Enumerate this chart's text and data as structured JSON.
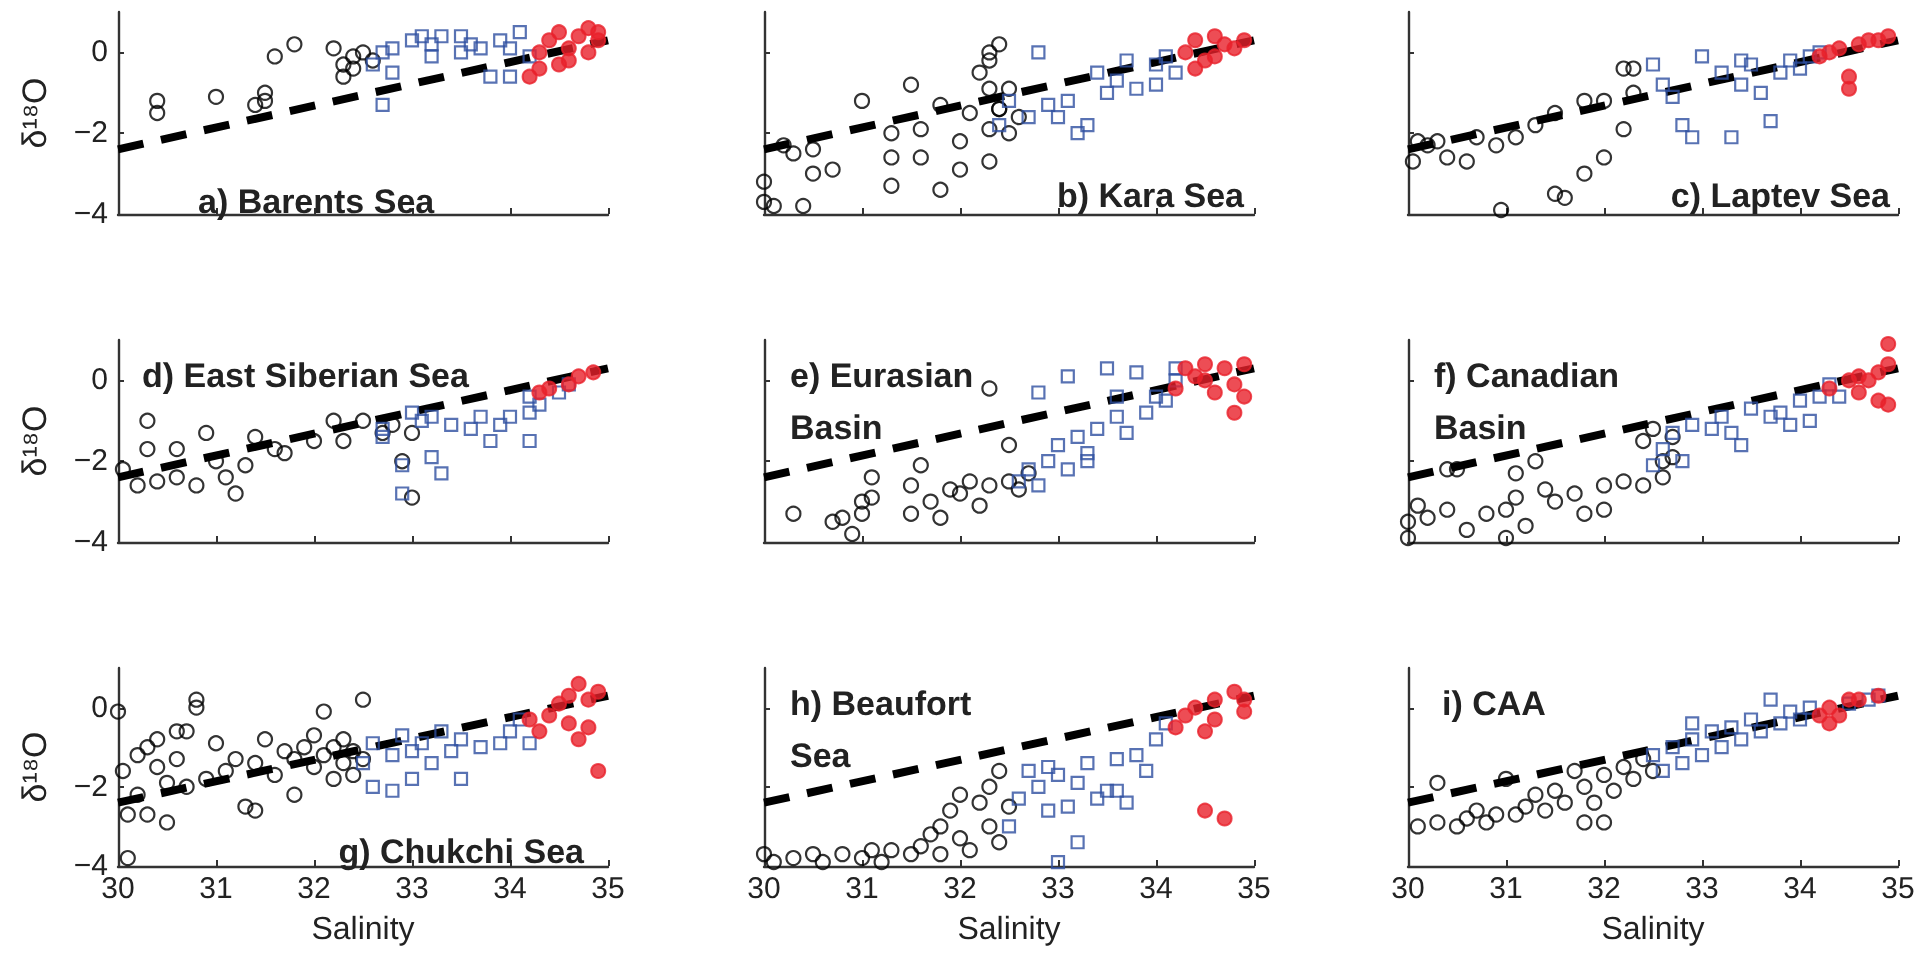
{
  "chart_data": [
    {
      "type": "scatter",
      "title": "a) Barents Sea",
      "ylabel": "δ¹⁸O",
      "xlim": [
        30,
        35
      ],
      "ylim": [
        -4,
        1
      ],
      "xticks": [
        30,
        31,
        32,
        33,
        34,
        35
      ],
      "yticks": [
        -4,
        -2,
        0
      ],
      "tick_labels": "y",
      "series": [
        {
          "color": "#000000",
          "marker": "circle",
          "x": [
            30.4,
            30.4,
            31.0,
            31.4,
            31.5,
            31.5,
            31.6,
            31.8,
            32.2,
            32.3,
            32.3,
            32.4,
            32.5,
            32.6,
            32.4
          ],
          "values": [
            -1.2,
            -1.5,
            -1.1,
            -1.3,
            -1.0,
            -1.2,
            -0.1,
            0.2,
            0.1,
            -0.3,
            -0.6,
            -0.1,
            0.0,
            -0.2,
            -0.4
          ]
        },
        {
          "color": "#2e4fa0",
          "marker": "square",
          "x": [
            32.6,
            32.7,
            32.8,
            32.8,
            32.7,
            33.0,
            33.1,
            33.2,
            33.3,
            33.5,
            33.5,
            33.6,
            33.8,
            33.9,
            34.0,
            34.0,
            34.2,
            33.7,
            33.2,
            34.1
          ],
          "values": [
            -0.3,
            0.0,
            0.1,
            -0.5,
            -1.3,
            0.3,
            0.4,
            0.2,
            0.4,
            0.4,
            0.0,
            0.2,
            -0.6,
            0.3,
            0.1,
            -0.6,
            -0.1,
            0.1,
            -0.1,
            0.5
          ]
        },
        {
          "color": "#e8202a",
          "marker": "circle",
          "x": [
            34.2,
            34.3,
            34.4,
            34.5,
            34.5,
            34.6,
            34.7,
            34.8,
            34.8,
            34.9,
            34.9,
            34.3,
            34.6
          ],
          "values": [
            -0.6,
            0.0,
            0.3,
            0.5,
            -0.3,
            0.1,
            0.4,
            0.6,
            0.0,
            0.3,
            0.5,
            -0.4,
            -0.2
          ]
        },
        {
          "type": "line",
          "color": "#000000",
          "marker": "none",
          "line_style": "dashed",
          "x": [
            30,
            35
          ],
          "values": [
            -2.4,
            0.3
          ]
        }
      ]
    },
    {
      "type": "scatter",
      "title": "b) Kara Sea",
      "xlim": [
        30,
        35
      ],
      "ylim": [
        -4,
        1
      ],
      "xticks": [
        30,
        31,
        32,
        33,
        34,
        35
      ],
      "yticks": [
        -4,
        -2,
        0
      ],
      "tick_labels": false,
      "series": [
        {
          "color": "#000000",
          "marker": "circle",
          "x": [
            30.0,
            30.0,
            30.1,
            30.2,
            30.3,
            30.4,
            30.5,
            30.5,
            30.7,
            31.0,
            31.3,
            31.3,
            31.3,
            31.5,
            31.6,
            31.6,
            31.8,
            31.8,
            32.0,
            32.0,
            32.3,
            32.3,
            32.4,
            32.5,
            32.6,
            32.5,
            32.2,
            32.3,
            32.4,
            32.3,
            32.1,
            32.3,
            32.4
          ],
          "values": [
            -3.2,
            -3.7,
            -3.8,
            -2.3,
            -2.5,
            -3.8,
            -3.0,
            -2.4,
            -2.9,
            -1.2,
            -2.0,
            -3.3,
            -2.6,
            -0.8,
            -1.9,
            -2.6,
            -1.3,
            -3.4,
            -2.2,
            -2.9,
            -0.9,
            -2.7,
            -1.4,
            -0.9,
            -1.6,
            -2.0,
            -0.5,
            -0.2,
            0.2,
            0.0,
            -1.5,
            -1.9,
            -1.4
          ]
        },
        {
          "color": "#2e4fa0",
          "marker": "square",
          "x": [
            32.8,
            32.4,
            32.7,
            32.9,
            33.0,
            33.1,
            33.3,
            33.5,
            33.6,
            33.8,
            34.0,
            34.0,
            34.1,
            33.4,
            33.7,
            34.2,
            33.2,
            32.5
          ],
          "values": [
            0.0,
            -1.8,
            -1.6,
            -1.3,
            -1.6,
            -1.2,
            -1.8,
            -1.0,
            -0.7,
            -0.9,
            -0.3,
            -0.8,
            -0.1,
            -0.5,
            -0.2,
            -0.5,
            -2.0,
            -1.2
          ]
        },
        {
          "color": "#e8202a",
          "marker": "circle",
          "x": [
            34.3,
            34.4,
            34.5,
            34.6,
            34.7,
            34.8,
            34.9,
            34.6,
            34.4
          ],
          "values": [
            0.0,
            0.3,
            -0.2,
            0.4,
            0.2,
            0.1,
            0.3,
            -0.1,
            -0.4
          ]
        },
        {
          "type": "line",
          "color": "#000000",
          "marker": "none",
          "line_style": "dashed",
          "x": [
            30,
            35
          ],
          "values": [
            -2.4,
            0.3
          ]
        }
      ]
    },
    {
      "type": "scatter",
      "title": "c) Laptev Sea",
      "xlim": [
        30,
        35
      ],
      "ylim": [
        -4,
        1
      ],
      "xticks": [
        30,
        31,
        32,
        33,
        34,
        35
      ],
      "yticks": [
        -4,
        -2,
        0
      ],
      "tick_labels": false,
      "series": [
        {
          "color": "#000000",
          "marker": "circle",
          "x": [
            30.05,
            30.1,
            30.2,
            30.3,
            30.4,
            30.6,
            30.7,
            30.9,
            30.95,
            31.1,
            31.3,
            31.5,
            31.6,
            31.5,
            31.8,
            31.8,
            32.0,
            32.0,
            32.2,
            32.2,
            32.3,
            32.3
          ],
          "values": [
            -2.7,
            -2.2,
            -2.3,
            -2.2,
            -2.6,
            -2.7,
            -2.1,
            -2.3,
            -3.9,
            -2.1,
            -1.8,
            -3.5,
            -3.6,
            -1.5,
            -3.0,
            -1.2,
            -2.6,
            -1.2,
            -1.9,
            -0.4,
            -0.4,
            -1.0
          ]
        },
        {
          "color": "#2e4fa0",
          "marker": "square",
          "x": [
            32.5,
            32.6,
            32.7,
            32.8,
            32.9,
            33.0,
            33.2,
            33.3,
            33.4,
            33.5,
            33.6,
            33.7,
            33.8,
            33.9,
            34.0,
            34.1,
            34.2,
            33.4
          ],
          "values": [
            -0.3,
            -0.8,
            -1.1,
            -1.8,
            -2.1,
            -0.1,
            -0.5,
            -2.1,
            -0.8,
            -0.3,
            -1.0,
            -1.7,
            -0.5,
            -0.2,
            -0.4,
            -0.1,
            0.0,
            -0.2
          ]
        },
        {
          "color": "#e8202a",
          "marker": "circle",
          "x": [
            34.2,
            34.3,
            34.4,
            34.5,
            34.5,
            34.6,
            34.7,
            34.8,
            34.9
          ],
          "values": [
            -0.1,
            0.0,
            0.1,
            -0.6,
            -0.9,
            0.2,
            0.3,
            0.3,
            0.4
          ]
        },
        {
          "type": "line",
          "color": "#000000",
          "marker": "none",
          "line_style": "dashed",
          "x": [
            30,
            35
          ],
          "values": [
            -2.4,
            0.3
          ]
        }
      ]
    },
    {
      "type": "scatter",
      "title": "d) East Siberian Sea",
      "ylabel": "δ¹⁸O",
      "xlim": [
        30,
        35
      ],
      "ylim": [
        -4,
        1
      ],
      "xticks": [
        30,
        31,
        32,
        33,
        34,
        35
      ],
      "yticks": [
        -4,
        -2,
        0
      ],
      "tick_labels": "y",
      "series": [
        {
          "color": "#000000",
          "marker": "circle",
          "x": [
            30.05,
            30.2,
            30.3,
            30.3,
            30.4,
            30.6,
            30.6,
            30.8,
            30.9,
            31.0,
            31.1,
            31.2,
            31.3,
            31.4,
            31.6,
            31.7,
            32.0,
            32.2,
            32.3,
            32.5,
            32.7,
            32.8,
            32.9,
            33.0,
            33.0
          ],
          "values": [
            -2.2,
            -2.6,
            -1.7,
            -1.0,
            -2.5,
            -2.4,
            -1.7,
            -2.6,
            -1.3,
            -2.0,
            -2.4,
            -2.8,
            -2.1,
            -1.4,
            -1.7,
            -1.8,
            -1.5,
            -1.0,
            -1.5,
            -1.0,
            -1.3,
            -1.1,
            -2.0,
            -2.9,
            -1.3
          ]
        },
        {
          "color": "#2e4fa0",
          "marker": "square",
          "x": [
            32.7,
            32.7,
            32.9,
            32.9,
            33.0,
            33.1,
            33.2,
            33.3,
            33.2,
            33.4,
            33.6,
            33.7,
            33.8,
            33.9,
            34.0,
            34.2,
            34.2,
            34.2,
            34.3,
            34.5,
            34.6
          ],
          "values": [
            -1.2,
            -1.4,
            -2.1,
            -2.8,
            -0.8,
            -1.0,
            -1.9,
            -2.3,
            -0.9,
            -1.1,
            -1.2,
            -0.9,
            -1.5,
            -1.1,
            -0.9,
            -0.8,
            -1.5,
            -0.4,
            -0.6,
            -0.3,
            -0.1
          ]
        },
        {
          "color": "#e8202a",
          "marker": "circle",
          "x": [
            34.3,
            34.4,
            34.6,
            34.7,
            34.85
          ],
          "values": [
            -0.3,
            -0.2,
            -0.1,
            0.1,
            0.2
          ]
        },
        {
          "type": "line",
          "color": "#000000",
          "marker": "none",
          "line_style": "dashed",
          "x": [
            30,
            35
          ],
          "values": [
            -2.4,
            0.3
          ]
        }
      ]
    },
    {
      "type": "scatter",
      "title": "e) Eurasian\nBasin",
      "xlim": [
        30,
        35
      ],
      "ylim": [
        -4,
        1
      ],
      "xticks": [
        30,
        31,
        32,
        33,
        34,
        35
      ],
      "yticks": [
        -4,
        -2,
        0
      ],
      "tick_labels": false,
      "series": [
        {
          "color": "#000000",
          "marker": "circle",
          "x": [
            30.3,
            30.7,
            30.8,
            30.9,
            31.0,
            31.0,
            31.1,
            31.1,
            31.5,
            31.5,
            31.6,
            31.7,
            31.8,
            31.9,
            32.0,
            32.1,
            32.2,
            32.3,
            32.5,
            32.6,
            32.7,
            32.3,
            32.5
          ],
          "values": [
            -3.3,
            -3.5,
            -3.4,
            -3.8,
            -3.0,
            -3.3,
            -2.4,
            -2.9,
            -2.6,
            -3.3,
            -2.1,
            -3.0,
            -3.4,
            -2.7,
            -2.8,
            -2.5,
            -3.1,
            -2.6,
            -2.5,
            -2.7,
            -2.3,
            -0.2,
            -1.6
          ]
        },
        {
          "color": "#2e4fa0",
          "marker": "square",
          "x": [
            32.6,
            32.7,
            32.8,
            32.8,
            32.9,
            33.0,
            33.1,
            33.1,
            33.2,
            33.3,
            33.4,
            33.5,
            33.6,
            33.6,
            33.7,
            33.8,
            33.9,
            34.0,
            34.1,
            34.2,
            34.2,
            33.3
          ],
          "values": [
            -2.5,
            -2.2,
            -2.6,
            -0.3,
            -2.0,
            -1.6,
            0.1,
            -2.2,
            -1.4,
            -1.8,
            -1.2,
            0.3,
            -0.4,
            -0.9,
            -1.3,
            0.2,
            -0.8,
            -0.4,
            -0.5,
            0.0,
            0.3,
            -2.0
          ]
        },
        {
          "color": "#e8202a",
          "marker": "circle",
          "x": [
            34.2,
            34.3,
            34.4,
            34.5,
            34.6,
            34.7,
            34.8,
            34.8,
            34.9,
            34.9,
            34.5
          ],
          "values": [
            -0.2,
            0.3,
            0.1,
            0.4,
            -0.3,
            0.3,
            -0.1,
            -0.8,
            0.4,
            -0.4,
            0.0
          ]
        },
        {
          "type": "line",
          "color": "#000000",
          "marker": "none",
          "line_style": "dashed",
          "x": [
            30,
            35
          ],
          "values": [
            -2.4,
            0.3
          ]
        }
      ]
    },
    {
      "type": "scatter",
      "title": "f) Canadian\nBasin",
      "xlim": [
        30,
        35
      ],
      "ylim": [
        -4,
        1
      ],
      "xticks": [
        30,
        31,
        32,
        33,
        34,
        35
      ],
      "yticks": [
        -4,
        -2,
        0
      ],
      "tick_labels": false,
      "series": [
        {
          "color": "#000000",
          "marker": "circle",
          "x": [
            30.0,
            30.0,
            30.1,
            30.2,
            30.4,
            30.4,
            30.5,
            30.6,
            30.8,
            31.0,
            31.0,
            31.1,
            31.1,
            31.2,
            31.3,
            31.4,
            31.5,
            31.7,
            31.8,
            32.0,
            32.0,
            32.2,
            32.4,
            32.5,
            32.6,
            32.7,
            32.6,
            32.7,
            32.4
          ],
          "values": [
            -3.5,
            -3.9,
            -3.1,
            -3.4,
            -3.2,
            -2.2,
            -2.2,
            -3.7,
            -3.3,
            -3.2,
            -3.9,
            -2.3,
            -2.9,
            -3.6,
            -2.0,
            -2.7,
            -3.0,
            -2.8,
            -3.3,
            -2.6,
            -3.2,
            -2.5,
            -1.5,
            -1.2,
            -2.4,
            -1.4,
            -2.0,
            -1.9,
            -2.6
          ]
        },
        {
          "color": "#2e4fa0",
          "marker": "square",
          "x": [
            32.5,
            32.6,
            32.7,
            32.8,
            32.9,
            33.1,
            33.2,
            33.3,
            33.4,
            33.5,
            33.7,
            33.8,
            33.9,
            34.0,
            34.1,
            34.2,
            34.3,
            34.4
          ],
          "values": [
            -2.1,
            -1.7,
            -1.3,
            -2.0,
            -1.1,
            -1.2,
            -0.9,
            -1.3,
            -1.6,
            -0.7,
            -0.9,
            -0.8,
            -1.1,
            -0.5,
            -1.0,
            -0.4,
            -0.1,
            -0.4
          ]
        },
        {
          "color": "#e8202a",
          "marker": "circle",
          "x": [
            34.3,
            34.5,
            34.6,
            34.7,
            34.8,
            34.8,
            34.9,
            34.9,
            34.9,
            34.6
          ],
          "values": [
            -0.2,
            0.0,
            -0.3,
            0.0,
            0.2,
            -0.5,
            0.4,
            0.9,
            -0.6,
            0.1
          ]
        },
        {
          "type": "line",
          "color": "#000000",
          "marker": "none",
          "line_style": "dashed",
          "x": [
            30,
            35
          ],
          "values": [
            -2.4,
            0.3
          ]
        }
      ]
    },
    {
      "type": "scatter",
      "title": "g) Chukchi Sea",
      "xlabel": "Salinity",
      "ylabel": "δ¹⁸O",
      "xlim": [
        30,
        35
      ],
      "ylim": [
        -4,
        1
      ],
      "xticks": [
        30,
        31,
        32,
        33,
        34,
        35
      ],
      "yticks": [
        -4,
        -2,
        0
      ],
      "series": [
        {
          "color": "#000000",
          "marker": "circle",
          "x": [
            30.0,
            30.05,
            30.1,
            30.1,
            30.2,
            30.2,
            30.3,
            30.3,
            30.4,
            30.4,
            30.5,
            30.5,
            30.6,
            30.6,
            30.7,
            30.7,
            30.8,
            30.8,
            30.9,
            31.0,
            31.1,
            31.2,
            31.3,
            31.4,
            31.4,
            31.5,
            31.6,
            31.7,
            31.8,
            31.8,
            31.9,
            32.0,
            32.0,
            32.1,
            32.1,
            32.2,
            32.2,
            32.3,
            32.3,
            32.4,
            32.4,
            32.5,
            32.5
          ],
          "values": [
            -0.1,
            -1.6,
            -3.8,
            -2.7,
            -1.2,
            -2.2,
            -1.0,
            -2.7,
            -1.5,
            -0.8,
            -2.9,
            -1.9,
            -0.6,
            -1.3,
            -2.0,
            -0.6,
            0.0,
            0.2,
            -1.8,
            -0.9,
            -1.6,
            -1.3,
            -2.5,
            -1.4,
            -2.6,
            -0.8,
            -1.7,
            -1.1,
            -2.2,
            -1.3,
            -1.0,
            -0.7,
            -1.5,
            -0.1,
            -1.2,
            -1.0,
            -1.8,
            -0.8,
            -1.4,
            -1.1,
            -1.7,
            0.2,
            -1.3
          ]
        },
        {
          "color": "#2e4fa0",
          "marker": "square",
          "x": [
            32.5,
            32.6,
            32.6,
            32.8,
            32.8,
            32.9,
            33.0,
            33.0,
            33.1,
            33.2,
            33.3,
            33.4,
            33.5,
            33.5,
            33.7,
            33.9,
            34.0,
            34.1,
            34.2
          ],
          "values": [
            -1.4,
            -0.9,
            -2.0,
            -2.1,
            -1.2,
            -0.7,
            -1.1,
            -1.8,
            -0.9,
            -1.4,
            -0.6,
            -1.1,
            -1.8,
            -0.8,
            -1.0,
            -0.9,
            -0.6,
            -0.3,
            -0.9
          ]
        },
        {
          "color": "#e8202a",
          "marker": "circle",
          "x": [
            34.2,
            34.3,
            34.4,
            34.5,
            34.6,
            34.7,
            34.7,
            34.8,
            34.8,
            34.9,
            34.9,
            34.6
          ],
          "values": [
            -0.3,
            -0.6,
            -0.2,
            0.1,
            -0.4,
            0.6,
            -0.8,
            0.2,
            -0.5,
            0.4,
            -1.6,
            0.3
          ]
        },
        {
          "type": "line",
          "color": "#000000",
          "marker": "none",
          "line_style": "dashed",
          "x": [
            30,
            35
          ],
          "values": [
            -2.4,
            0.3
          ]
        }
      ]
    },
    {
      "type": "scatter",
      "title": "h) Beaufort\nSea",
      "xlabel": "Salinity",
      "xlim": [
        30,
        35
      ],
      "ylim": [
        -4,
        1
      ],
      "xticks": [
        30,
        31,
        32,
        33,
        34,
        35
      ],
      "yticks": [
        -4,
        -2,
        0
      ],
      "tick_labels": "x",
      "series": [
        {
          "color": "#000000",
          "marker": "circle",
          "x": [
            30.0,
            30.1,
            30.3,
            30.5,
            30.6,
            30.8,
            31.0,
            31.1,
            31.2,
            31.3,
            31.5,
            31.6,
            31.7,
            31.8,
            31.8,
            31.9,
            32.0,
            32.0,
            32.1,
            32.2,
            32.3,
            32.3,
            32.4,
            32.4,
            32.5
          ],
          "values": [
            -3.7,
            -3.9,
            -3.8,
            -3.7,
            -3.9,
            -3.7,
            -3.8,
            -3.6,
            -3.9,
            -3.6,
            -3.7,
            -3.5,
            -3.2,
            -3.0,
            -3.7,
            -2.6,
            -3.3,
            -2.2,
            -3.6,
            -2.4,
            -2.0,
            -3.0,
            -1.6,
            -3.4,
            -2.5
          ]
        },
        {
          "color": "#2e4fa0",
          "marker": "square",
          "x": [
            32.5,
            32.6,
            32.7,
            32.8,
            32.9,
            32.9,
            33.0,
            33.0,
            33.1,
            33.2,
            33.2,
            33.3,
            33.4,
            33.5,
            33.6,
            33.7,
            33.8,
            33.9,
            34.0,
            34.1,
            33.6
          ],
          "values": [
            -3.0,
            -2.3,
            -1.6,
            -2.0,
            -1.5,
            -2.6,
            -3.9,
            -1.7,
            -2.5,
            -3.4,
            -1.9,
            -1.4,
            -2.3,
            -2.1,
            -1.3,
            -2.4,
            -1.2,
            -1.6,
            -0.8,
            -0.4,
            -2.1
          ]
        },
        {
          "color": "#e8202a",
          "marker": "circle",
          "x": [
            34.2,
            34.3,
            34.4,
            34.5,
            34.6,
            34.6,
            34.7,
            34.8,
            34.9,
            34.9,
            34.5
          ],
          "values": [
            -0.5,
            -0.2,
            0.0,
            -2.6,
            0.2,
            -0.3,
            -2.8,
            0.4,
            0.2,
            -0.1,
            -0.6
          ]
        },
        {
          "type": "line",
          "color": "#000000",
          "marker": "none",
          "line_style": "dashed",
          "x": [
            30,
            35
          ],
          "values": [
            -2.4,
            0.3
          ]
        }
      ]
    },
    {
      "type": "scatter",
      "title": "i) CAA",
      "xlabel": "Salinity",
      "xlim": [
        30,
        35
      ],
      "ylim": [
        -4,
        1
      ],
      "xticks": [
        30,
        31,
        32,
        33,
        34,
        35
      ],
      "yticks": [
        -4,
        -2,
        0
      ],
      "tick_labels": "x",
      "series": [
        {
          "color": "#000000",
          "marker": "circle",
          "x": [
            30.1,
            30.3,
            30.3,
            30.5,
            30.6,
            30.7,
            30.8,
            30.9,
            31.0,
            31.1,
            31.2,
            31.3,
            31.4,
            31.5,
            31.6,
            31.7,
            31.8,
            31.8,
            31.9,
            32.0,
            32.0,
            32.1,
            32.2,
            32.3,
            32.4,
            32.5
          ],
          "values": [
            -3.0,
            -1.9,
            -2.9,
            -3.0,
            -2.8,
            -2.6,
            -2.9,
            -2.7,
            -1.8,
            -2.7,
            -2.5,
            -2.2,
            -2.6,
            -2.1,
            -2.4,
            -1.6,
            -2.9,
            -2.0,
            -2.4,
            -2.9,
            -1.7,
            -2.1,
            -1.5,
            -1.8,
            -1.3,
            -1.6
          ]
        },
        {
          "color": "#2e4fa0",
          "marker": "square",
          "x": [
            32.5,
            32.6,
            32.7,
            32.8,
            32.9,
            33.0,
            33.1,
            33.2,
            33.3,
            33.4,
            33.5,
            33.6,
            33.7,
            33.8,
            33.9,
            34.0,
            34.1,
            34.5,
            34.7,
            34.8,
            32.9
          ],
          "values": [
            -1.2,
            -1.6,
            -1.0,
            -1.4,
            -0.8,
            -1.2,
            -0.6,
            -1.0,
            -0.5,
            -0.8,
            -0.3,
            -0.6,
            0.2,
            -0.4,
            -0.1,
            -0.3,
            0.0,
            0.1,
            0.2,
            0.3,
            -0.4
          ]
        },
        {
          "color": "#e8202a",
          "marker": "circle",
          "x": [
            34.2,
            34.3,
            34.4,
            34.3,
            34.5,
            34.6,
            34.8
          ],
          "values": [
            -0.2,
            0.0,
            -0.2,
            -0.4,
            0.2,
            0.2,
            0.3
          ]
        },
        {
          "type": "line",
          "color": "#000000",
          "marker": "none",
          "line_style": "dashed",
          "x": [
            30,
            35
          ],
          "values": [
            -2.4,
            0.3
          ]
        }
      ]
    }
  ]
}
